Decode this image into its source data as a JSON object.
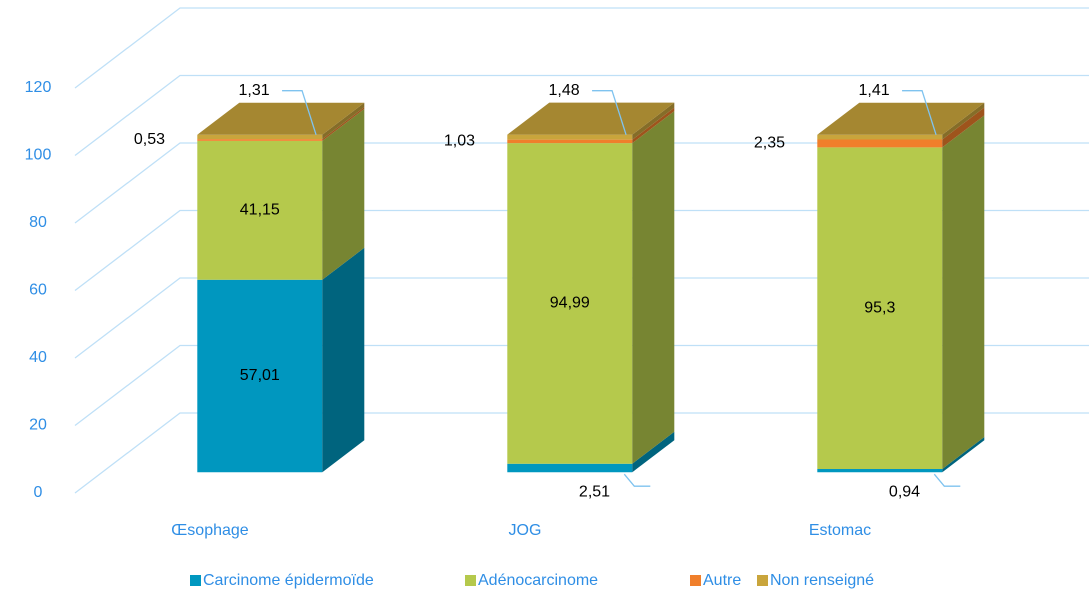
{
  "chart_data": {
    "type": "bar3d_stacked",
    "categories": [
      "Œsophage",
      "JOG",
      "Estomac"
    ],
    "series": [
      {
        "name": "Carcinome épidermoïde",
        "color": "#0097bf",
        "values": [
          57.01,
          2.51,
          0.94
        ],
        "value_labels": [
          "57,01",
          "2,51",
          "0,94"
        ]
      },
      {
        "name": "Adénocarcinome",
        "color": "#b5c94c",
        "values": [
          41.15,
          94.99,
          95.3
        ],
        "value_labels": [
          "41,15",
          "94,99",
          "95,3"
        ]
      },
      {
        "name": "Autre",
        "color": "#f07f2b",
        "values": [
          0.53,
          1.03,
          2.35
        ],
        "value_labels": [
          "0,53",
          "1,03",
          "2,35"
        ]
      },
      {
        "name": "Non renseigné",
        "color": "#c9a53c",
        "values": [
          1.31,
          1.48,
          1.41
        ],
        "value_labels": [
          "1,31",
          "1,48",
          "1,41"
        ]
      }
    ],
    "ylim": [
      0,
      120
    ],
    "yticks": [
      0,
      20,
      40,
      60,
      80,
      100,
      120
    ],
    "grid": true,
    "legend": "bottom"
  }
}
